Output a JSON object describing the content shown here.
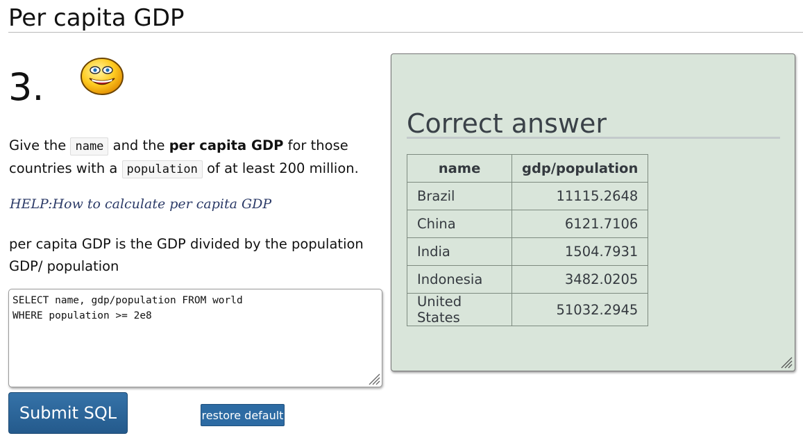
{
  "page": {
    "title": "Per capita GDP"
  },
  "question": {
    "number": "3.",
    "text_before_name": "Give the ",
    "code_name": "name",
    "text_middle": " and the ",
    "bold_phrase": "per capita GDP",
    "text_after_bold": " for those countries with a ",
    "code_population": "population",
    "text_end": " of at least 200 million."
  },
  "help": {
    "link_text": "HELP:How to calculate per capita GDP",
    "text": "per capita GDP is the GDP divided by the population GDP/ population"
  },
  "editor": {
    "sql": "SELECT name, gdp/population FROM world\nWHERE population >= 2e8"
  },
  "buttons": {
    "submit_label": "Submit SQL",
    "restore_label": "restore default"
  },
  "answer": {
    "heading": "Correct answer",
    "columns": [
      "name",
      "gdp/population"
    ],
    "rows": [
      [
        "Brazil",
        "11115.2648"
      ],
      [
        "China",
        "6121.7106"
      ],
      [
        "India",
        "1504.7931"
      ],
      [
        "Indonesia",
        "3482.0205"
      ],
      [
        "United States",
        "51032.2945"
      ]
    ]
  },
  "colors": {
    "answer_panel_bg": "#d9e5da",
    "button_blue": "#2d6ba3",
    "help_link": "#2b3a67"
  },
  "icons": {
    "status": "smiley-face-icon",
    "resize": "resize-grip-icon"
  }
}
